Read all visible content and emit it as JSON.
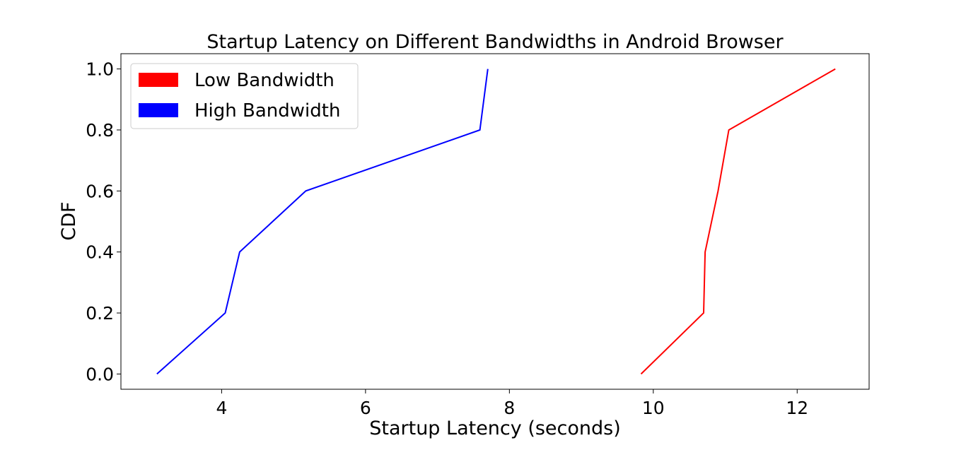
{
  "chart_data": {
    "type": "line",
    "title": "Startup Latency on Different Bandwidths in Android Browser",
    "xlabel": "Startup Latency (seconds)",
    "ylabel": "CDF",
    "xlim": [
      2.6,
      13.0
    ],
    "ylim": [
      -0.05,
      1.05
    ],
    "xticks": [
      4,
      6,
      8,
      10,
      12
    ],
    "yticks": [
      0.0,
      0.2,
      0.4,
      0.6,
      0.8,
      1.0
    ],
    "xtick_labels": [
      "4",
      "6",
      "8",
      "10",
      "12"
    ],
    "ytick_labels": [
      "0.0",
      "0.2",
      "0.4",
      "0.6",
      "0.8",
      "1.0"
    ],
    "grid": false,
    "legend_position": "top-left",
    "series": [
      {
        "name": "Low Bandwidth",
        "color": "#ff0000",
        "x": [
          9.83,
          10.7,
          10.72,
          10.9,
          11.05,
          12.53
        ],
        "y": [
          0.0,
          0.2,
          0.4,
          0.6,
          0.8,
          1.0
        ]
      },
      {
        "name": "High Bandwidth",
        "color": "#0000ff",
        "x": [
          3.1,
          4.05,
          4.25,
          5.17,
          7.59,
          7.7
        ],
        "y": [
          0.0,
          0.2,
          0.4,
          0.6,
          0.8,
          1.0
        ]
      }
    ]
  }
}
